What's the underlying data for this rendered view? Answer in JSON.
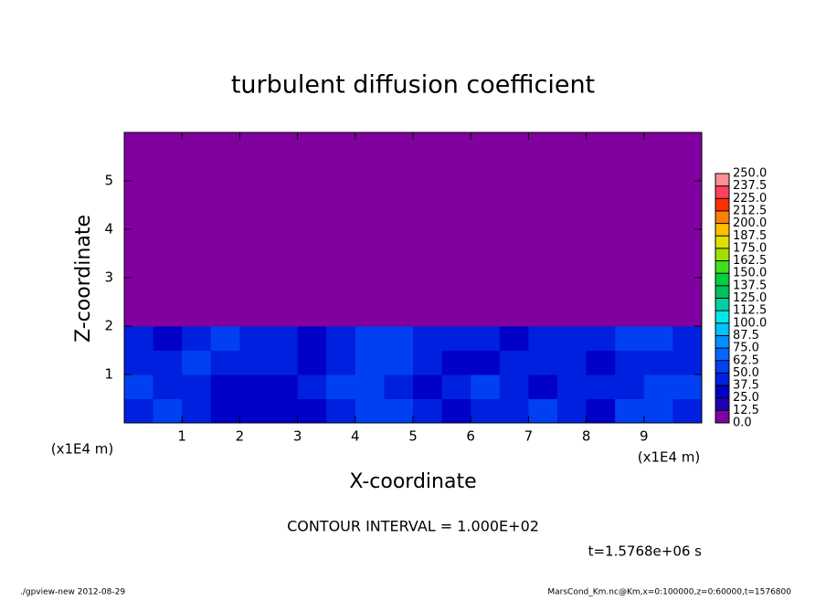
{
  "chart_data": {
    "type": "heatmap",
    "title": "turbulent diffusion coefficient",
    "x_label": "X-coordinate",
    "y_label": "Z-coordinate",
    "x_unit": "(x1E4 m)",
    "y_unit": "(x1E4 m)",
    "xlim": [
      0,
      10
    ],
    "ylim": [
      0,
      6
    ],
    "xticks": [
      1,
      2,
      3,
      4,
      5,
      6,
      7,
      8,
      9
    ],
    "yticks": [
      1,
      2,
      3,
      4,
      5
    ],
    "z": [
      [
        40,
        55,
        45,
        35,
        30,
        30,
        35,
        40,
        60,
        55,
        40,
        35,
        40,
        45,
        50,
        40,
        35,
        50,
        60,
        45
      ],
      [
        50,
        45,
        40,
        35,
        30,
        35,
        45,
        55,
        60,
        45,
        35,
        40,
        50,
        40,
        35,
        45,
        40,
        45,
        55,
        50
      ],
      [
        45,
        40,
        50,
        45,
        40,
        45,
        35,
        45,
        55,
        50,
        40,
        35,
        35,
        40,
        45,
        40,
        35,
        40,
        40,
        45
      ],
      [
        40,
        35,
        45,
        50,
        45,
        40,
        35,
        40,
        60,
        55,
        45,
        40,
        40,
        35,
        40,
        45,
        40,
        50,
        55,
        45
      ],
      [
        0,
        0,
        0,
        0,
        0,
        0,
        0,
        0,
        0,
        0,
        0,
        0,
        0,
        0,
        0,
        0,
        0,
        0,
        0,
        0
      ],
      [
        0,
        0,
        0,
        0,
        0,
        0,
        0,
        0,
        0,
        0,
        0,
        0,
        0,
        0,
        0,
        0,
        0,
        0,
        0,
        0
      ],
      [
        0,
        0,
        0,
        0,
        0,
        0,
        0,
        0,
        0,
        0,
        0,
        0,
        0,
        0,
        0,
        0,
        0,
        0,
        0,
        0
      ],
      [
        0,
        0,
        0,
        0,
        0,
        0,
        0,
        0,
        0,
        0,
        0,
        0,
        0,
        0,
        0,
        0,
        0,
        0,
        0,
        0
      ],
      [
        0,
        0,
        0,
        0,
        0,
        0,
        0,
        0,
        0,
        0,
        0,
        0,
        0,
        0,
        0,
        0,
        0,
        0,
        0,
        0
      ],
      [
        0,
        0,
        0,
        0,
        0,
        0,
        0,
        0,
        0,
        0,
        0,
        0,
        0,
        0,
        0,
        0,
        0,
        0,
        0,
        0
      ],
      [
        0,
        0,
        0,
        0,
        0,
        0,
        0,
        0,
        0,
        0,
        0,
        0,
        0,
        0,
        0,
        0,
        0,
        0,
        0,
        0
      ],
      [
        0,
        0,
        0,
        0,
        0,
        0,
        0,
        0,
        0,
        0,
        0,
        0,
        0,
        0,
        0,
        0,
        0,
        0,
        0,
        0
      ]
    ],
    "colorbar_ticks": [
      {
        "value": 0,
        "label": "0.0"
      },
      12.5,
      {
        "value": 25,
        "label": "25.0"
      },
      37.5,
      {
        "value": 50,
        "label": "50.0"
      },
      62.5,
      {
        "value": 75,
        "label": "75.0"
      },
      87.5,
      {
        "value": 100,
        "label": "100.0"
      },
      112.5,
      {
        "value": 125,
        "label": "125.0"
      },
      137.5,
      {
        "value": 150,
        "label": "150.0"
      },
      162.5,
      {
        "value": 175,
        "label": "175.0"
      },
      187.5,
      {
        "value": 200,
        "label": "200.0"
      },
      212.5,
      {
        "value": 225,
        "label": "225.0"
      },
      237.5,
      {
        "value": 250,
        "label": "250.0"
      }
    ],
    "colorbar_colors": [
      "#8000a0",
      "#2000b0",
      "#0000c8",
      "#0020e0",
      "#0040f0",
      "#0068ff",
      "#0090ff",
      "#00c0ff",
      "#00e8e8",
      "#00d0a0",
      "#00c060",
      "#00d040",
      "#40e020",
      "#a0e000",
      "#e0e000",
      "#ffc000",
      "#ff8000",
      "#ff3000",
      "#ff4060",
      "#ff9090"
    ],
    "contour_note": "CONTOUR INTERVAL = 1.000E+02",
    "time_note": "t=1.5768e+06 s",
    "footer_left": "./gpview-new   2012-08-29",
    "footer_right": "MarsCond_Km.nc@Km,x=0:100000,z=0:60000,t=1576800"
  }
}
